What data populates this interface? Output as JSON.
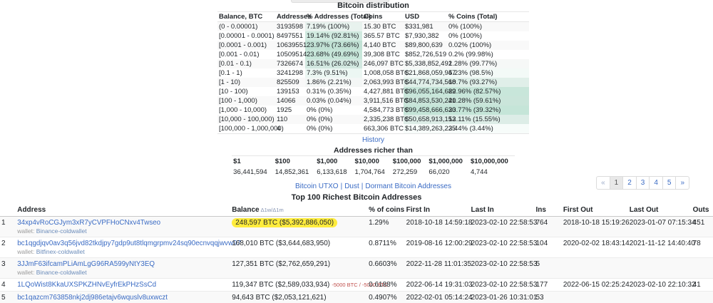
{
  "colors": {
    "link": "#3a6bc4",
    "wallet_link": "#6b8cba",
    "highlight_yellow": "#ffec3d",
    "delta_red": "#c0504d",
    "stripe": "#f9f9f9",
    "heat_rgb": "102,187,153"
  },
  "distribution": {
    "title": "Bitcoin distribution",
    "columns": [
      "Balance, BTC",
      "Addresses",
      "% Addresses (Total)",
      "Coins",
      "USD",
      "% Coins (Total)"
    ],
    "rows": [
      {
        "range": "(0 - 0.00001)",
        "addresses": "3193598",
        "pct_addresses": "7.19% (100%)",
        "coins": "15.30 BTC",
        "usd": "$331,981",
        "pct_coins": "0% (100%)"
      },
      {
        "range": "[0.00001 - 0.0001)",
        "addresses": "8497551",
        "pct_addresses": "19.14% (92.81%)",
        "coins": "365.57 BTC",
        "usd": "$7,930,382",
        "pct_coins": "0% (100%)"
      },
      {
        "range": "[0.0001 - 0.001)",
        "addresses": "10639551",
        "pct_addresses": "23.97% (73.66%)",
        "coins": "4,140 BTC",
        "usd": "$89,800,639",
        "pct_coins": "0.02% (100%)"
      },
      {
        "range": "[0.001 - 0.01)",
        "addresses": "10509514",
        "pct_addresses": "23.68% (49.69%)",
        "coins": "39,308 BTC",
        "usd": "$852,726,519",
        "pct_coins": "0.2% (99.98%)"
      },
      {
        "range": "[0.01 - 0.1)",
        "addresses": "7326674",
        "pct_addresses": "16.51% (26.02%)",
        "coins": "246,097 BTC",
        "usd": "$5,338,852,492",
        "pct_coins": "1.28% (99.77%)"
      },
      {
        "range": "[0.1 - 1)",
        "addresses": "3241298",
        "pct_addresses": "7.3% (9.51%)",
        "coins": "1,008,058 BTC",
        "usd": "$21,868,059,947",
        "pct_coins": "5.23% (98.5%)"
      },
      {
        "range": "[1 - 10)",
        "addresses": "825509",
        "pct_addresses": "1.86% (2.21%)",
        "coins": "2,063,993 BTC",
        "usd": "$44,774,734,568",
        "pct_coins": "10.7% (93.27%)"
      },
      {
        "range": "[10 - 100)",
        "addresses": "139153",
        "pct_addresses": "0.31% (0.35%)",
        "coins": "4,427,881 BTC",
        "usd": "$96,055,164,689",
        "pct_coins": "22.96% (82.57%)"
      },
      {
        "range": "[100 - 1,000)",
        "addresses": "14066",
        "pct_addresses": "0.03% (0.04%)",
        "coins": "3,911,516 BTC",
        "usd": "$84,853,530,241",
        "pct_coins": "20.28% (59.61%)"
      },
      {
        "range": "[1,000 - 10,000)",
        "addresses": "1925",
        "pct_addresses": "0% (0%)",
        "coins": "4,584,773 BTC",
        "usd": "$99,458,666,630",
        "pct_coins": "23.77% (39.32%)"
      },
      {
        "range": "[10,000 - 100,000)",
        "addresses": "110",
        "pct_addresses": "0% (0%)",
        "coins": "2,335,238 BTC",
        "usd": "$50,658,913,153",
        "pct_coins": "12.11% (15.55%)"
      },
      {
        "range": "[100,000 - 1,000,000)",
        "addresses": "4",
        "pct_addresses": "0% (0%)",
        "coins": "663,306 BTC",
        "usd": "$14,389,263,225",
        "pct_coins": "3.44% (3.44%)"
      }
    ],
    "history_label": "History"
  },
  "richer_than": {
    "title": "Addresses richer than",
    "thresholds": [
      "$1",
      "$100",
      "$1,000",
      "$10,000",
      "$100,000",
      "$1,000,000",
      "$10,000,000"
    ],
    "counts": [
      "36,441,594",
      "14,852,361",
      "6,133,618",
      "1,704,764",
      "272,259",
      "66,020",
      "4,744"
    ]
  },
  "links": {
    "items": [
      "Bitcoin UTXO",
      "Dust",
      "Dormant Bitcoin Addresses"
    ],
    "separator": "|"
  },
  "pagination": {
    "items": [
      {
        "label": "«",
        "muted": true
      },
      {
        "label": "1",
        "active": true
      },
      {
        "label": "2"
      },
      {
        "label": "3"
      },
      {
        "label": "4"
      },
      {
        "label": "5"
      },
      {
        "label": "»"
      }
    ]
  },
  "top100": {
    "title": "Top 100 Richest Bitcoin Addresses",
    "columns": [
      "Address",
      "Balance",
      "% of coins",
      "First In",
      "Last In",
      "Ins",
      "First Out",
      "Last Out",
      "Outs"
    ],
    "balance_sort_note": "Δ1w/Δ1m",
    "wallet_prefix": "wallet:",
    "rows": [
      {
        "rank": "1",
        "address": "34xp4vRoCGJym3xR7yCVPFHoCNxv4Twseo",
        "wallet": "Binance-coldwallet",
        "balance": "248,597 BTC ($5,392,886,050)",
        "delta": "",
        "highlighted": true,
        "pct_coins": "1.29%",
        "first_in": "2018-10-18 14:59:18",
        "last_in": "2023-02-10 22:58:53",
        "ins": "764",
        "first_out": "2018-10-18 15:19:26",
        "last_out": "2023-01-07 07:15:34",
        "outs": "451"
      },
      {
        "rank": "2",
        "address": "bc1qgdjqv0av3q56jvd82tkdjpy7gdp9ut8tlqmgrpmv24sq90ecnvqqjwvw97",
        "wallet": "Bitfinex-coldwallet",
        "balance": "168,010 BTC ($3,644,683,950)",
        "delta": "",
        "highlighted": false,
        "pct_coins": "0.8711%",
        "first_in": "2019-08-16 12:00:29",
        "last_in": "2023-02-10 22:58:53",
        "ins": "104",
        "first_out": "2020-02-02 18:43:14",
        "last_out": "2021-11-12 14:40:40",
        "outs": "78"
      },
      {
        "rank": "3",
        "address": "3JJmF63ifcamPLiAmLgG96RA599yNtY3EQ",
        "wallet": "Binance-coldwallet",
        "balance": "127,351 BTC ($2,762,659,291)",
        "delta": "",
        "highlighted": false,
        "pct_coins": "0.6603%",
        "first_in": "2022-11-28 11:01:35",
        "last_in": "2023-02-10 22:58:53",
        "ins": "5",
        "first_out": "",
        "last_out": "",
        "outs": ""
      },
      {
        "rank": "4",
        "address": "1LQoWist8KkaUXSPKZHNvEyfrEkPHzSsCd",
        "wallet": "",
        "balance": "119,347 BTC ($2,589,033,934)",
        "delta": "-5000 BTC / -5000 BTC",
        "highlighted": false,
        "pct_coins": "0.6188%",
        "first_in": "2022-06-14 19:31:03",
        "last_in": "2023-02-10 22:58:53",
        "ins": "177",
        "first_out": "2022-06-15 02:25:24",
        "last_out": "2023-02-10 22:10:32",
        "outs": "41"
      },
      {
        "rank": "5",
        "address": "bc1qazcm763858nkj2dj986etajv6wquslv8uxwczt",
        "wallet": "",
        "balance": "94,643 BTC ($2,053,121,621)",
        "delta": "",
        "highlighted": false,
        "pct_coins": "0.4907%",
        "first_in": "2022-02-01 05:14:24",
        "last_in": "2023-01-26 10:31:01",
        "ins": "53",
        "first_out": "",
        "last_out": "",
        "outs": ""
      }
    ]
  }
}
